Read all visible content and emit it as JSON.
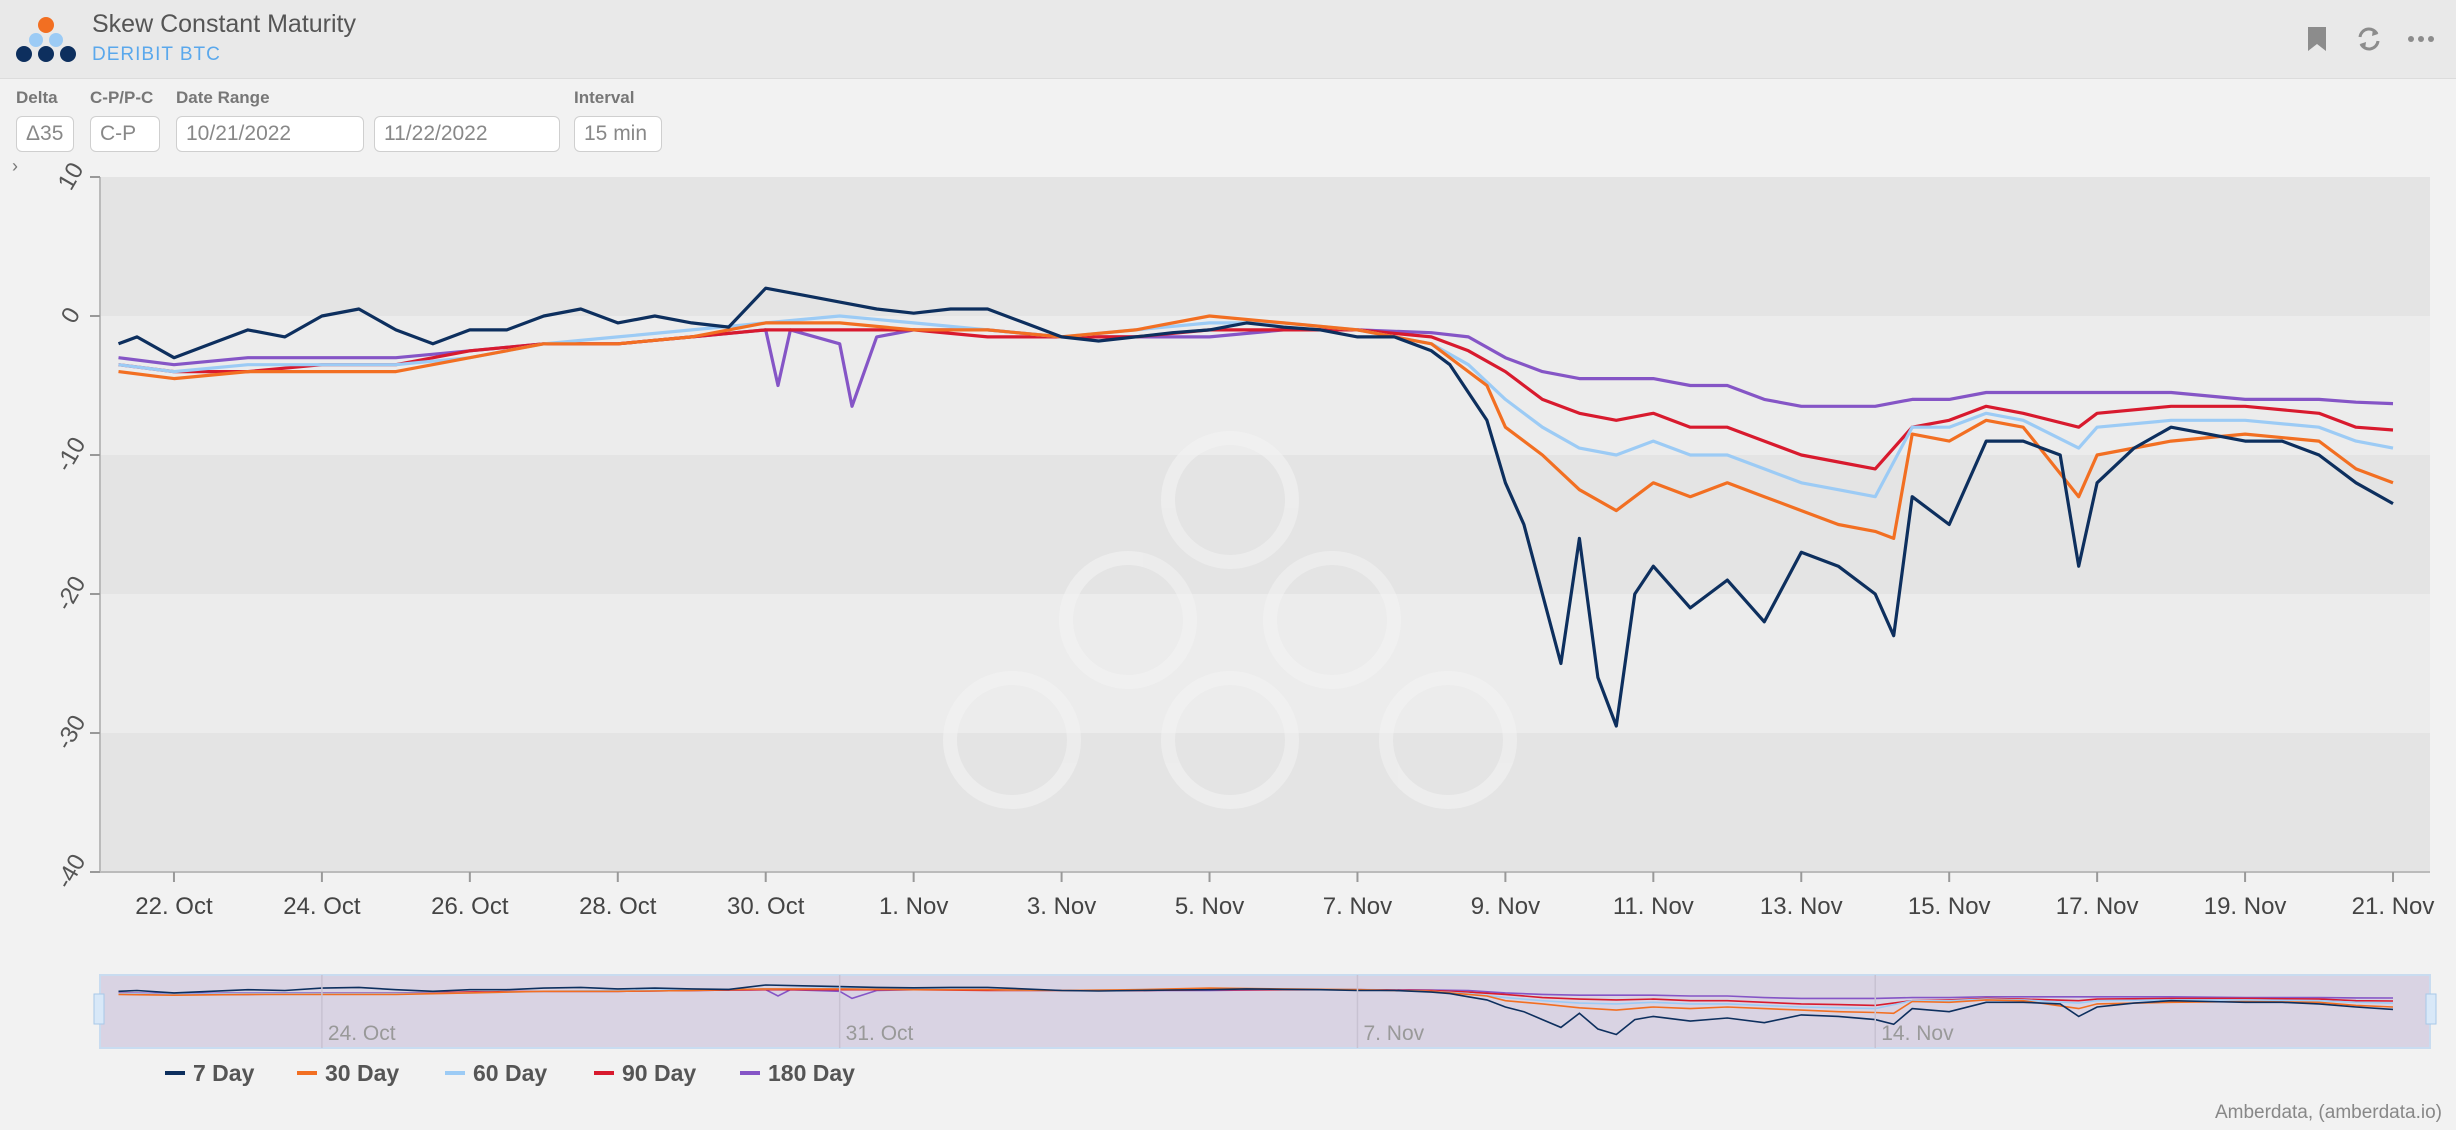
{
  "header": {
    "title": "Skew Constant Maturity",
    "subtitle": "DERIBIT BTC",
    "icons": [
      "bookmark-icon",
      "refresh-icon",
      "more-icon"
    ]
  },
  "controls": {
    "delta": {
      "label": "Delta",
      "value": "Δ35"
    },
    "cp": {
      "label": "C-P/P-C",
      "value": "C-P"
    },
    "date_range": {
      "label": "Date Range",
      "start": "10/21/2022",
      "end": "11/22/2022"
    },
    "interval": {
      "label": "Interval",
      "value": "15 min"
    }
  },
  "credit": "Amberdata, (amberdata.io)",
  "colors": {
    "s7": "#0d2f5e",
    "s30": "#f26f22",
    "s60": "#9ccbf5",
    "s90": "#d81a2e",
    "s180": "#8555c6"
  },
  "chart_data": {
    "type": "line",
    "title": "",
    "xlabel": "",
    "ylabel": "",
    "ylim": [
      -40,
      10
    ],
    "yticks": [
      "10",
      "0",
      "-10",
      "-20",
      "-30",
      "-40"
    ],
    "xlim": [
      "2022-10-21",
      "2022-11-21T12:00"
    ],
    "xticks": [
      {
        "date": "2022-10-22",
        "label": "22. Oct"
      },
      {
        "date": "2022-10-24",
        "label": "24. Oct"
      },
      {
        "date": "2022-10-26",
        "label": "26. Oct"
      },
      {
        "date": "2022-10-28",
        "label": "28. Oct"
      },
      {
        "date": "2022-10-30",
        "label": "30. Oct"
      },
      {
        "date": "2022-11-01",
        "label": "1. Nov"
      },
      {
        "date": "2022-11-03",
        "label": "3. Nov"
      },
      {
        "date": "2022-11-05",
        "label": "5. Nov"
      },
      {
        "date": "2022-11-07",
        "label": "7. Nov"
      },
      {
        "date": "2022-11-09",
        "label": "9. Nov"
      },
      {
        "date": "2022-11-11",
        "label": "11. Nov"
      },
      {
        "date": "2022-11-13",
        "label": "13. Nov"
      },
      {
        "date": "2022-11-15",
        "label": "15. Nov"
      },
      {
        "date": "2022-11-17",
        "label": "17. Nov"
      },
      {
        "date": "2022-11-19",
        "label": "19. Nov"
      },
      {
        "date": "2022-11-21",
        "label": "21. Nov"
      }
    ],
    "navigator_ticks": [
      {
        "date": "2022-10-24",
        "label": "24. Oct"
      },
      {
        "date": "2022-10-31",
        "label": "31. Oct"
      },
      {
        "date": "2022-11-07",
        "label": "7. Nov"
      },
      {
        "date": "2022-11-14",
        "label": "14. Nov"
      }
    ],
    "legend_position": "bottom-left",
    "series": [
      {
        "name": "7 Day",
        "color": "#0d2f5e",
        "points": [
          [
            "2022-10-21T06:00",
            -2
          ],
          [
            "2022-10-21T12:00",
            -1.5
          ],
          [
            "2022-10-22",
            -3
          ],
          [
            "2022-10-22T12:00",
            -2
          ],
          [
            "2022-10-23",
            -1
          ],
          [
            "2022-10-23T12:00",
            -1.5
          ],
          [
            "2022-10-24",
            0
          ],
          [
            "2022-10-24T12:00",
            0.5
          ],
          [
            "2022-10-25",
            -1
          ],
          [
            "2022-10-25T12:00",
            -2
          ],
          [
            "2022-10-26",
            -1
          ],
          [
            "2022-10-26T12:00",
            -1
          ],
          [
            "2022-10-27",
            0
          ],
          [
            "2022-10-27T12:00",
            0.5
          ],
          [
            "2022-10-28",
            -0.5
          ],
          [
            "2022-10-28T12:00",
            0
          ],
          [
            "2022-10-29",
            -0.5
          ],
          [
            "2022-10-29T12:00",
            -0.8
          ],
          [
            "2022-10-30",
            2
          ],
          [
            "2022-10-30T12:00",
            1.5
          ],
          [
            "2022-10-31",
            1
          ],
          [
            "2022-10-31T12:00",
            0.5
          ],
          [
            "2022-11-01",
            0.2
          ],
          [
            "2022-11-01T12:00",
            0.5
          ],
          [
            "2022-11-02",
            0.5
          ],
          [
            "2022-11-02T12:00",
            -0.5
          ],
          [
            "2022-11-03",
            -1.5
          ],
          [
            "2022-11-03T12:00",
            -1.8
          ],
          [
            "2022-11-04",
            -1.5
          ],
          [
            "2022-11-04T12:00",
            -1.2
          ],
          [
            "2022-11-05",
            -1
          ],
          [
            "2022-11-05T12:00",
            -0.5
          ],
          [
            "2022-11-06",
            -0.8
          ],
          [
            "2022-11-06T12:00",
            -1
          ],
          [
            "2022-11-07",
            -1.5
          ],
          [
            "2022-11-07T12:00",
            -1.5
          ],
          [
            "2022-11-08",
            -2.5
          ],
          [
            "2022-11-08T06:00",
            -3.5
          ],
          [
            "2022-11-08T12:00",
            -5.5
          ],
          [
            "2022-11-08T18:00",
            -7.5
          ],
          [
            "2022-11-09",
            -12
          ],
          [
            "2022-11-09T06:00",
            -15
          ],
          [
            "2022-11-09T12:00",
            -20
          ],
          [
            "2022-11-09T18:00",
            -25
          ],
          [
            "2022-11-10",
            -16
          ],
          [
            "2022-11-10T06:00",
            -26
          ],
          [
            "2022-11-10T12:00",
            -29.5
          ],
          [
            "2022-11-10T18:00",
            -20
          ],
          [
            "2022-11-11",
            -18
          ],
          [
            "2022-11-11T12:00",
            -21
          ],
          [
            "2022-11-12",
            -19
          ],
          [
            "2022-11-12T12:00",
            -22
          ],
          [
            "2022-11-13",
            -17
          ],
          [
            "2022-11-13T12:00",
            -18
          ],
          [
            "2022-11-14",
            -20
          ],
          [
            "2022-11-14T06:00",
            -23
          ],
          [
            "2022-11-14T12:00",
            -13
          ],
          [
            "2022-11-15",
            -15
          ],
          [
            "2022-11-15T12:00",
            -9
          ],
          [
            "2022-11-16",
            -9
          ],
          [
            "2022-11-16T12:00",
            -10
          ],
          [
            "2022-11-16T18:00",
            -18
          ],
          [
            "2022-11-17",
            -12
          ],
          [
            "2022-11-17T12:00",
            -9.5
          ],
          [
            "2022-11-18",
            -8
          ],
          [
            "2022-11-18T12:00",
            -8.5
          ],
          [
            "2022-11-19",
            -9
          ],
          [
            "2022-11-19T12:00",
            -9
          ],
          [
            "2022-11-20",
            -10
          ],
          [
            "2022-11-20T12:00",
            -12
          ],
          [
            "2022-11-21",
            -13.5
          ]
        ]
      },
      {
        "name": "30 Day",
        "color": "#f26f22",
        "points": [
          [
            "2022-10-21T06:00",
            -4
          ],
          [
            "2022-10-22",
            -4.5
          ],
          [
            "2022-10-23",
            -4
          ],
          [
            "2022-10-24",
            -4
          ],
          [
            "2022-10-25",
            -4
          ],
          [
            "2022-10-26",
            -3
          ],
          [
            "2022-10-27",
            -2
          ],
          [
            "2022-10-28",
            -2
          ],
          [
            "2022-10-29",
            -1.5
          ],
          [
            "2022-10-30",
            -0.5
          ],
          [
            "2022-10-31",
            -0.5
          ],
          [
            "2022-11-01",
            -1
          ],
          [
            "2022-11-02",
            -1
          ],
          [
            "2022-11-03",
            -1.5
          ],
          [
            "2022-11-04",
            -1
          ],
          [
            "2022-11-05",
            0
          ],
          [
            "2022-11-06",
            -0.5
          ],
          [
            "2022-11-07",
            -1
          ],
          [
            "2022-11-08",
            -2
          ],
          [
            "2022-11-08T12:00",
            -4
          ],
          [
            "2022-11-08T18:00",
            -5
          ],
          [
            "2022-11-09",
            -8
          ],
          [
            "2022-11-09T12:00",
            -10
          ],
          [
            "2022-11-10",
            -12.5
          ],
          [
            "2022-11-10T12:00",
            -14
          ],
          [
            "2022-11-11",
            -12
          ],
          [
            "2022-11-11T12:00",
            -13
          ],
          [
            "2022-11-12",
            -12
          ],
          [
            "2022-11-12T12:00",
            -13
          ],
          [
            "2022-11-13",
            -14
          ],
          [
            "2022-11-13T12:00",
            -15
          ],
          [
            "2022-11-14",
            -15.5
          ],
          [
            "2022-11-14T06:00",
            -16
          ],
          [
            "2022-11-14T12:00",
            -8.5
          ],
          [
            "2022-11-15",
            -9
          ],
          [
            "2022-11-15T12:00",
            -7.5
          ],
          [
            "2022-11-16",
            -8
          ],
          [
            "2022-11-16T18:00",
            -13
          ],
          [
            "2022-11-17",
            -10
          ],
          [
            "2022-11-18",
            -9
          ],
          [
            "2022-11-19",
            -8.5
          ],
          [
            "2022-11-20",
            -9
          ],
          [
            "2022-11-20T12:00",
            -11
          ],
          [
            "2022-11-21",
            -12
          ]
        ]
      },
      {
        "name": "60 Day",
        "color": "#9ccbf5",
        "points": [
          [
            "2022-10-21T06:00",
            -3.5
          ],
          [
            "2022-10-22",
            -4
          ],
          [
            "2022-10-23",
            -3.5
          ],
          [
            "2022-10-24",
            -3.5
          ],
          [
            "2022-10-25",
            -3.5
          ],
          [
            "2022-10-26",
            -3
          ],
          [
            "2022-10-27",
            -2
          ],
          [
            "2022-10-28",
            -1.5
          ],
          [
            "2022-10-29",
            -1
          ],
          [
            "2022-10-30",
            -0.5
          ],
          [
            "2022-10-31",
            0
          ],
          [
            "2022-11-01",
            -0.5
          ],
          [
            "2022-11-02",
            -1
          ],
          [
            "2022-11-03",
            -1.5
          ],
          [
            "2022-11-04",
            -1
          ],
          [
            "2022-11-05",
            -0.5
          ],
          [
            "2022-11-06",
            -0.5
          ],
          [
            "2022-11-07",
            -1
          ],
          [
            "2022-11-08",
            -2
          ],
          [
            "2022-11-08T12:00",
            -3.5
          ],
          [
            "2022-11-09",
            -6
          ],
          [
            "2022-11-09T12:00",
            -8
          ],
          [
            "2022-11-10",
            -9.5
          ],
          [
            "2022-11-10T12:00",
            -10
          ],
          [
            "2022-11-11",
            -9
          ],
          [
            "2022-11-11T12:00",
            -10
          ],
          [
            "2022-11-12",
            -10
          ],
          [
            "2022-11-12T12:00",
            -11
          ],
          [
            "2022-11-13",
            -12
          ],
          [
            "2022-11-13T12:00",
            -12.5
          ],
          [
            "2022-11-14",
            -13
          ],
          [
            "2022-11-14T12:00",
            -8
          ],
          [
            "2022-11-15",
            -8
          ],
          [
            "2022-11-15T12:00",
            -7
          ],
          [
            "2022-11-16",
            -7.5
          ],
          [
            "2022-11-16T18:00",
            -9.5
          ],
          [
            "2022-11-17",
            -8
          ],
          [
            "2022-11-18",
            -7.5
          ],
          [
            "2022-11-19",
            -7.5
          ],
          [
            "2022-11-20",
            -8
          ],
          [
            "2022-11-20T12:00",
            -9
          ],
          [
            "2022-11-21",
            -9.5
          ]
        ]
      },
      {
        "name": "90 Day",
        "color": "#d81a2e",
        "points": [
          [
            "2022-10-21T06:00",
            -3.5
          ],
          [
            "2022-10-22",
            -4
          ],
          [
            "2022-10-23",
            -4
          ],
          [
            "2022-10-24",
            -3.5
          ],
          [
            "2022-10-25",
            -3.5
          ],
          [
            "2022-10-26",
            -2.5
          ],
          [
            "2022-10-27",
            -2
          ],
          [
            "2022-10-28",
            -2
          ],
          [
            "2022-10-29",
            -1.5
          ],
          [
            "2022-10-30",
            -1
          ],
          [
            "2022-10-31",
            -1
          ],
          [
            "2022-11-01",
            -1
          ],
          [
            "2022-11-02",
            -1.5
          ],
          [
            "2022-11-03",
            -1.5
          ],
          [
            "2022-11-04",
            -1.5
          ],
          [
            "2022-11-05",
            -1
          ],
          [
            "2022-11-06",
            -1
          ],
          [
            "2022-11-07",
            -1
          ],
          [
            "2022-11-08",
            -1.5
          ],
          [
            "2022-11-08T12:00",
            -2.5
          ],
          [
            "2022-11-09",
            -4
          ],
          [
            "2022-11-09T12:00",
            -6
          ],
          [
            "2022-11-10",
            -7
          ],
          [
            "2022-11-10T12:00",
            -7.5
          ],
          [
            "2022-11-11",
            -7
          ],
          [
            "2022-11-11T12:00",
            -8
          ],
          [
            "2022-11-12",
            -8
          ],
          [
            "2022-11-12T12:00",
            -9
          ],
          [
            "2022-11-13",
            -10
          ],
          [
            "2022-11-13T12:00",
            -10.5
          ],
          [
            "2022-11-14",
            -11
          ],
          [
            "2022-11-14T12:00",
            -8
          ],
          [
            "2022-11-15",
            -7.5
          ],
          [
            "2022-11-15T12:00",
            -6.5
          ],
          [
            "2022-11-16",
            -7
          ],
          [
            "2022-11-16T18:00",
            -8
          ],
          [
            "2022-11-17",
            -7
          ],
          [
            "2022-11-18",
            -6.5
          ],
          [
            "2022-11-19",
            -6.5
          ],
          [
            "2022-11-20",
            -7
          ],
          [
            "2022-11-20T12:00",
            -8
          ],
          [
            "2022-11-21",
            -8.2
          ]
        ]
      },
      {
        "name": "180 Day",
        "color": "#8555c6",
        "points": [
          [
            "2022-10-21T06:00",
            -3
          ],
          [
            "2022-10-22",
            -3.5
          ],
          [
            "2022-10-23",
            -3
          ],
          [
            "2022-10-24",
            -3
          ],
          [
            "2022-10-25",
            -3
          ],
          [
            "2022-10-26",
            -2.5
          ],
          [
            "2022-10-27",
            -2
          ],
          [
            "2022-10-28",
            -2
          ],
          [
            "2022-10-29",
            -1.5
          ],
          [
            "2022-10-30",
            -1
          ],
          [
            "2022-10-30T04:00",
            -5
          ],
          [
            "2022-10-30T08:00",
            -1
          ],
          [
            "2022-10-31",
            -2
          ],
          [
            "2022-10-31T04:00",
            -6.5
          ],
          [
            "2022-10-31T12:00",
            -1.5
          ],
          [
            "2022-11-01",
            -1
          ],
          [
            "2022-11-02",
            -1
          ],
          [
            "2022-11-03",
            -1.5
          ],
          [
            "2022-11-04",
            -1.5
          ],
          [
            "2022-11-05",
            -1.5
          ],
          [
            "2022-11-06",
            -1
          ],
          [
            "2022-11-07",
            -1
          ],
          [
            "2022-11-08",
            -1.2
          ],
          [
            "2022-11-08T12:00",
            -1.5
          ],
          [
            "2022-11-09",
            -3
          ],
          [
            "2022-11-09T12:00",
            -4
          ],
          [
            "2022-11-10",
            -4.5
          ],
          [
            "2022-11-10T12:00",
            -4.5
          ],
          [
            "2022-11-11",
            -4.5
          ],
          [
            "2022-11-11T12:00",
            -5
          ],
          [
            "2022-11-12",
            -5
          ],
          [
            "2022-11-12T12:00",
            -6
          ],
          [
            "2022-11-13",
            -6.5
          ],
          [
            "2022-11-13T12:00",
            -6.5
          ],
          [
            "2022-11-14",
            -6.5
          ],
          [
            "2022-11-14T12:00",
            -6
          ],
          [
            "2022-11-15",
            -6
          ],
          [
            "2022-11-15T12:00",
            -5.5
          ],
          [
            "2022-11-16",
            -5.5
          ],
          [
            "2022-11-17",
            -5.5
          ],
          [
            "2022-11-18",
            -5.5
          ],
          [
            "2022-11-19",
            -6
          ],
          [
            "2022-11-20",
            -6
          ],
          [
            "2022-11-20T12:00",
            -6.2
          ],
          [
            "2022-11-21",
            -6.3
          ]
        ]
      }
    ]
  }
}
